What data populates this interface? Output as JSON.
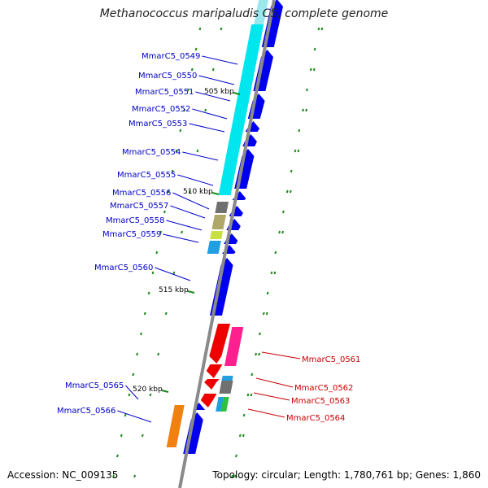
{
  "title": "Methanococcus maripaludis C5, complete genome",
  "accession": "Accession: NC_009135",
  "summary": "Topology: circular; Length: 1,780,761 bp; Genes: 1,860",
  "ticks": [
    "505 kbp",
    "510 kbp",
    "515 kbp",
    "520 kbp"
  ],
  "colors": {
    "backbone": "#808080",
    "tick": "#1a8a1a",
    "forward_label": "#0000c8",
    "reverse_label": "#c80000",
    "cds_blue": "#0000ee",
    "cyan": "#00e6ee",
    "gray": "#707070",
    "olive": "#b0a868",
    "yellowgreen": "#c8e040",
    "skyblue": "#20a0e0",
    "red": "#ee0000",
    "magenta": "#ff2090",
    "orange": "#f08010",
    "green": "#30c040"
  },
  "forward_genes": [
    "MmarC5_0549",
    "MmarC5_0550",
    "MmarC5_0551",
    "MmarC5_0552",
    "MmarC5_0553",
    "MmarC5_0554",
    "MmarC5_0555",
    "MmarC5_0556",
    "MmarC5_0557",
    "MmarC5_0558",
    "MmarC5_0559",
    "MmarC5_0560",
    "MmarC5_0565",
    "MmarC5_0566"
  ],
  "reverse_genes": [
    "MmarC5_0561",
    "MmarC5_0562",
    "MmarC5_0563",
    "MmarC5_0564"
  ]
}
